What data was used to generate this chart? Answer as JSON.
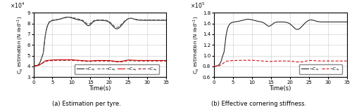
{
  "title_a": "(a) Estimation per tyre.",
  "title_b": "(b) Effective cornering stiffness.",
  "xlabel": "Time(s)",
  "ylabel_a": "$C_\\alpha$ estimation (N rad$^{-1}$)",
  "ylabel_b": "$C_\\alpha$ estimation (N rad$^{-1}$)",
  "xlim": [
    0,
    35
  ],
  "ylim_a": [
    30000.0,
    90000.0
  ],
  "ylim_b": [
    60000.0,
    180000.0
  ],
  "yticks_a": [
    30000.0,
    40000.0,
    50000.0,
    60000.0,
    70000.0,
    80000.0,
    90000.0
  ],
  "yticks_b": [
    60000.0,
    80000.0,
    100000.0,
    120000.0,
    140000.0,
    160000.0,
    180000.0
  ],
  "xticks": [
    0,
    5,
    10,
    15,
    20,
    25,
    30,
    35
  ],
  "legend_a": [
    "$C_{\\alpha_{fl}}$",
    "$C_{\\alpha_{fr}}$",
    "$C_{\\alpha_{rl}}$",
    "$C_{\\alpha_{rr}}$"
  ],
  "legend_b": [
    "$C_{\\alpha_f}$",
    "$C_{\\alpha_r}$"
  ],
  "col_black": "#1a1a1a",
  "col_darkgray": "#555555",
  "col_red": "#cc0000",
  "col_darkred": "#990000",
  "background": "#ffffff",
  "grid_color": "#c8c8c8"
}
